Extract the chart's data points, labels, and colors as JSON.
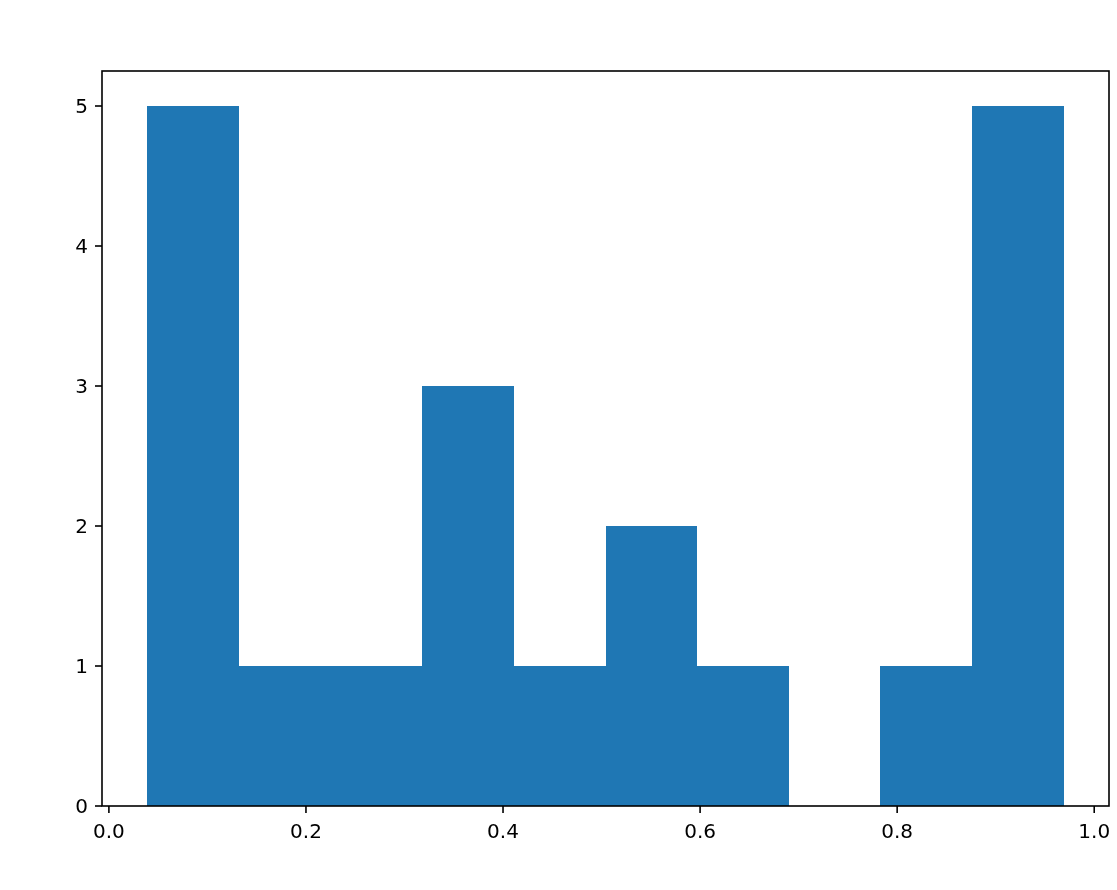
{
  "chart_data": {
    "type": "histogram",
    "bins": [
      0.039,
      0.132,
      0.225,
      0.318,
      0.411,
      0.504,
      0.597,
      0.69,
      0.783,
      0.876,
      0.969
    ],
    "values": [
      5,
      1,
      1,
      3,
      1,
      2,
      1,
      0,
      1,
      5
    ],
    "color": "#1f77b4",
    "xlim": [
      -0.007,
      1.015
    ],
    "xticks": [
      {
        "value": 0,
        "label": "0.0"
      },
      {
        "value": 0.2,
        "label": "0.2"
      },
      {
        "value": 0.4,
        "label": "0.4"
      },
      {
        "value": 0.6,
        "label": "0.6"
      },
      {
        "value": 0.8,
        "label": "0.8"
      },
      {
        "value": 1,
        "label": "1.0"
      }
    ],
    "ylim": [
      0,
      5.25
    ],
    "yticks": [
      0,
      1,
      2,
      3,
      4,
      5
    ],
    "grid": false
  }
}
